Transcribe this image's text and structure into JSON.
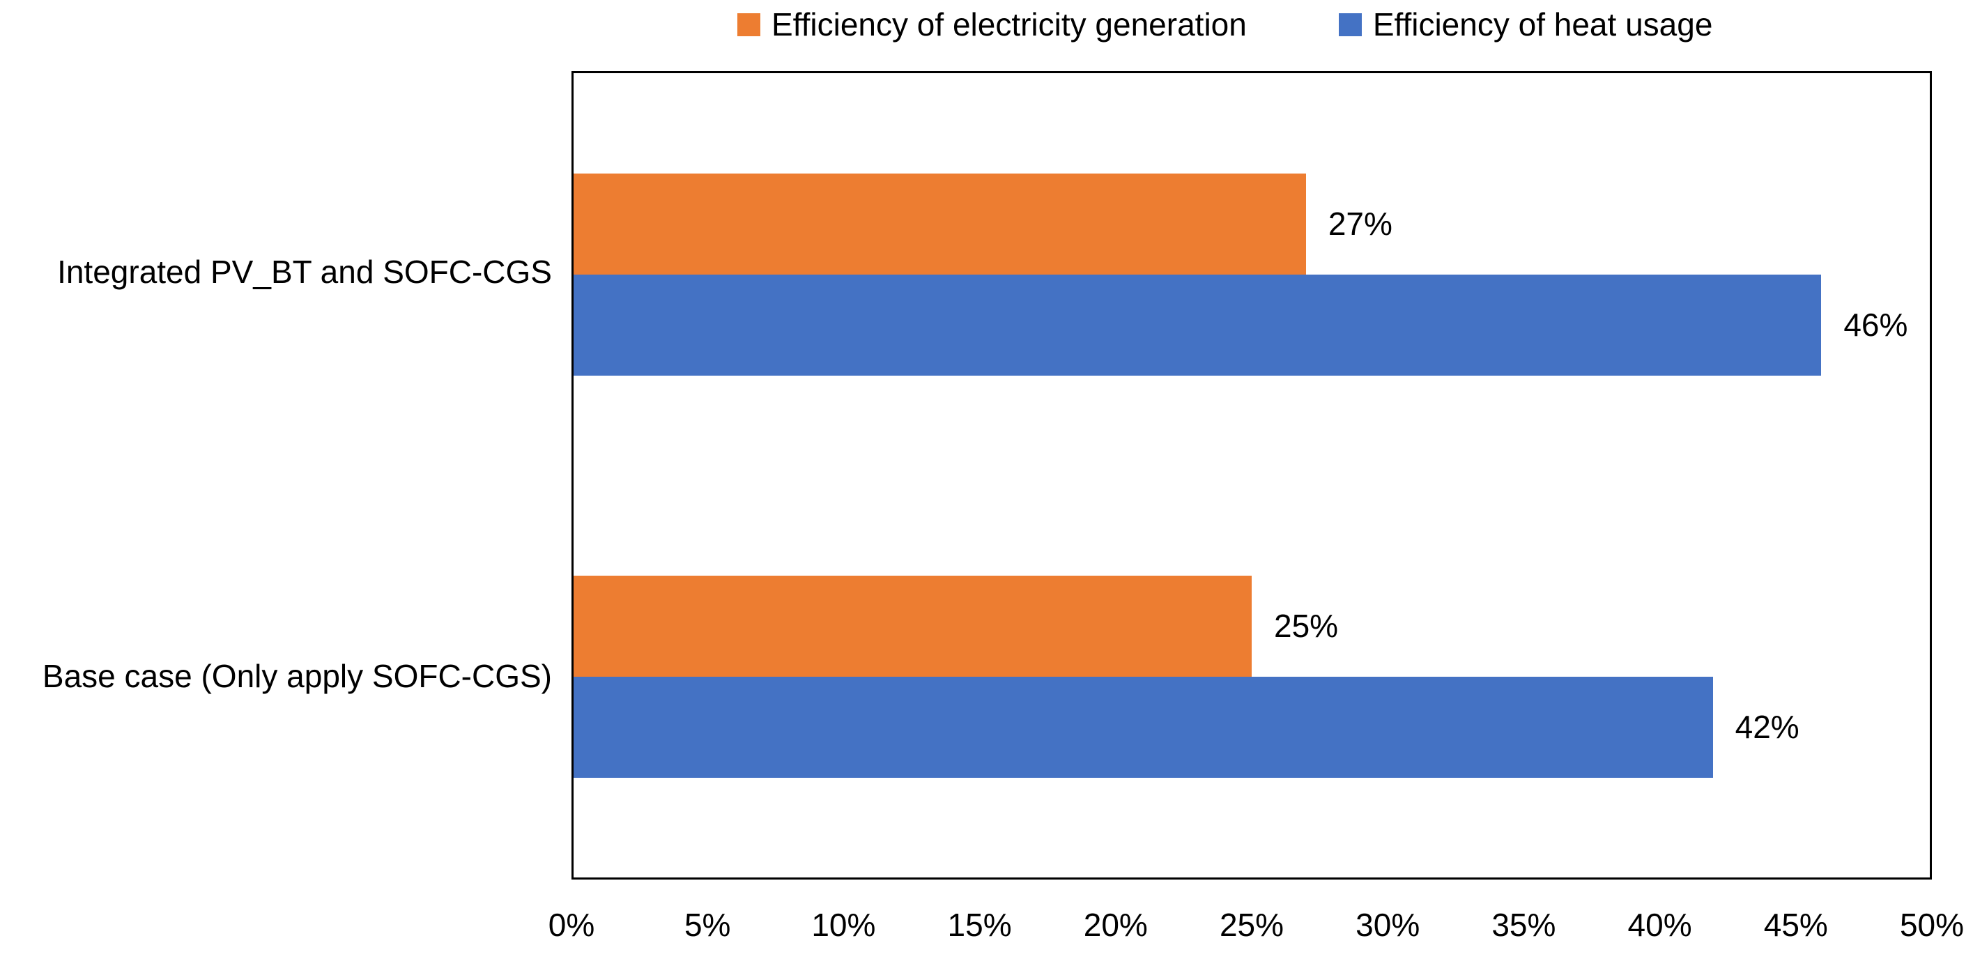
{
  "chart_data": {
    "type": "bar",
    "orientation": "horizontal",
    "title": "",
    "categories": [
      "Integrated PV_BT and SOFC-CGS",
      "Base case (Only apply SOFC-CGS)"
    ],
    "series": [
      {
        "name": "Efficiency of electricity generation",
        "color": "#ED7D31",
        "values": [
          27,
          25
        ],
        "data_labels": [
          "27%",
          "25%"
        ]
      },
      {
        "name": "Efficiency of heat usage",
        "color": "#4472C4",
        "values": [
          46,
          42
        ],
        "data_labels": [
          "46%",
          "42%"
        ]
      }
    ],
    "xlim": [
      0,
      50
    ],
    "x_tick_labels": [
      "0%",
      "5%",
      "10%",
      "15%",
      "20%",
      "25%",
      "30%",
      "35%",
      "40%",
      "45%",
      "50%"
    ],
    "legend_position": "top",
    "grid": false,
    "plot_border_color": "#000000",
    "background_color": "#FFFFFF",
    "bar_label_color": "#000000"
  }
}
